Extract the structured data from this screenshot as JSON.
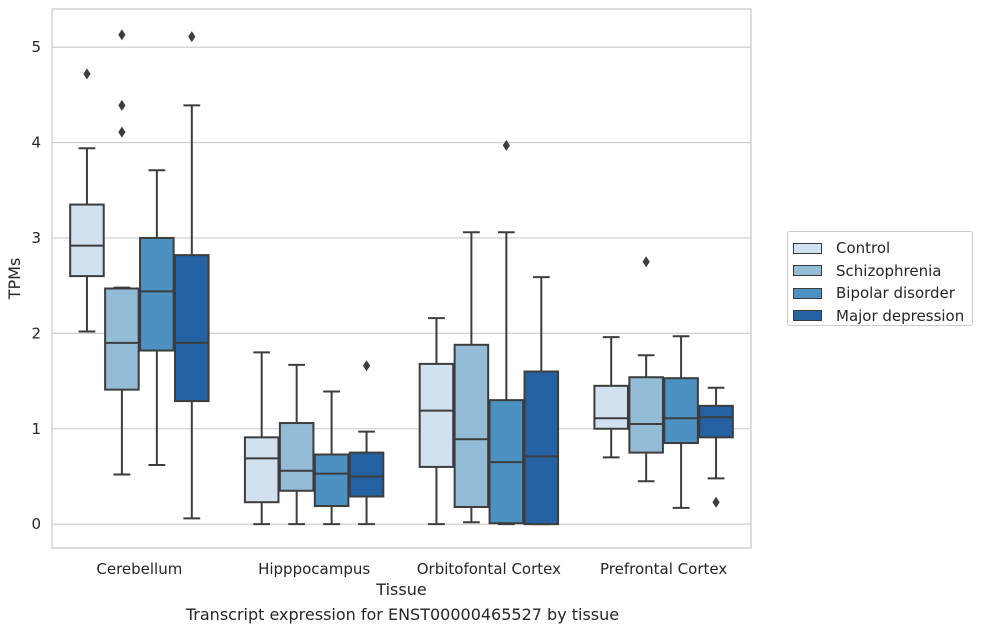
{
  "caption": "Transcript expression for ENST00000465527 by tissue",
  "legend_items": [
    "Control",
    "Schizophrenia",
    "Bipolar disorder",
    "Major depression"
  ],
  "colors": {
    "series": [
      "#d1e1f0",
      "#94bcd7",
      "#4c91c2",
      "#2462a4"
    ],
    "line": "#3d3d3d",
    "grid": "#cccccc",
    "frame": "#cccccc"
  },
  "chart_data": {
    "type": "box",
    "xlabel": "Tissue",
    "ylabel": "TPMs",
    "ylim": [
      -0.25,
      5.4
    ],
    "yticks": [
      0,
      1,
      2,
      3,
      4,
      5
    ],
    "grid": true,
    "legend_position": "right-outside",
    "categories": [
      "Cerebellum",
      "Hipppocampus",
      "Orbitofontal Cortex",
      "Prefrontal Cortex"
    ],
    "series": [
      {
        "name": "Control",
        "boxes": [
          {
            "whislo": 2.02,
            "q1": 2.6,
            "med": 2.92,
            "q3": 3.35,
            "whishi": 3.94,
            "fliers": [
              4.72
            ]
          },
          {
            "whislo": 0.0,
            "q1": 0.23,
            "med": 0.69,
            "q3": 0.91,
            "whishi": 1.8,
            "fliers": []
          },
          {
            "whislo": 0.0,
            "q1": 0.6,
            "med": 1.19,
            "q3": 1.68,
            "whishi": 2.16,
            "fliers": []
          },
          {
            "whislo": 0.7,
            "q1": 1.0,
            "med": 1.11,
            "q3": 1.45,
            "whishi": 1.96,
            "fliers": []
          }
        ]
      },
      {
        "name": "Schizophrenia",
        "boxes": [
          {
            "whislo": 0.52,
            "q1": 1.41,
            "med": 1.9,
            "q3": 2.47,
            "whishi": 2.48,
            "fliers": [
              5.13,
              4.39,
              4.11
            ]
          },
          {
            "whislo": 0.0,
            "q1": 0.35,
            "med": 0.56,
            "q3": 1.06,
            "whishi": 1.67,
            "fliers": []
          },
          {
            "whislo": 0.02,
            "q1": 0.18,
            "med": 0.89,
            "q3": 1.88,
            "whishi": 3.06,
            "fliers": []
          },
          {
            "whislo": 0.45,
            "q1": 0.75,
            "med": 1.05,
            "q3": 1.54,
            "whishi": 1.77,
            "fliers": [
              2.75
            ]
          }
        ]
      },
      {
        "name": "Bipolar disorder",
        "boxes": [
          {
            "whislo": 0.62,
            "q1": 1.82,
            "med": 2.44,
            "q3": 3.0,
            "whishi": 3.71,
            "fliers": []
          },
          {
            "whislo": 0.0,
            "q1": 0.19,
            "med": 0.53,
            "q3": 0.73,
            "whishi": 1.39,
            "fliers": []
          },
          {
            "whislo": 0.0,
            "q1": 0.01,
            "med": 0.65,
            "q3": 1.3,
            "whishi": 3.06,
            "fliers": [
              3.97
            ]
          },
          {
            "whislo": 0.17,
            "q1": 0.85,
            "med": 1.11,
            "q3": 1.53,
            "whishi": 1.97,
            "fliers": []
          }
        ]
      },
      {
        "name": "Major depression",
        "boxes": [
          {
            "whislo": 0.06,
            "q1": 1.29,
            "med": 1.9,
            "q3": 2.82,
            "whishi": 4.39,
            "fliers": [
              5.11
            ]
          },
          {
            "whislo": 0.0,
            "q1": 0.29,
            "med": 0.5,
            "q3": 0.75,
            "whishi": 0.97,
            "fliers": [
              1.66
            ]
          },
          {
            "whislo": 0.0,
            "q1": 0.0,
            "med": 0.71,
            "q3": 1.6,
            "whishi": 2.59,
            "fliers": []
          },
          {
            "whislo": 0.48,
            "q1": 0.91,
            "med": 1.12,
            "q3": 1.24,
            "whishi": 1.43,
            "fliers": [
              0.23
            ]
          }
        ]
      }
    ]
  }
}
